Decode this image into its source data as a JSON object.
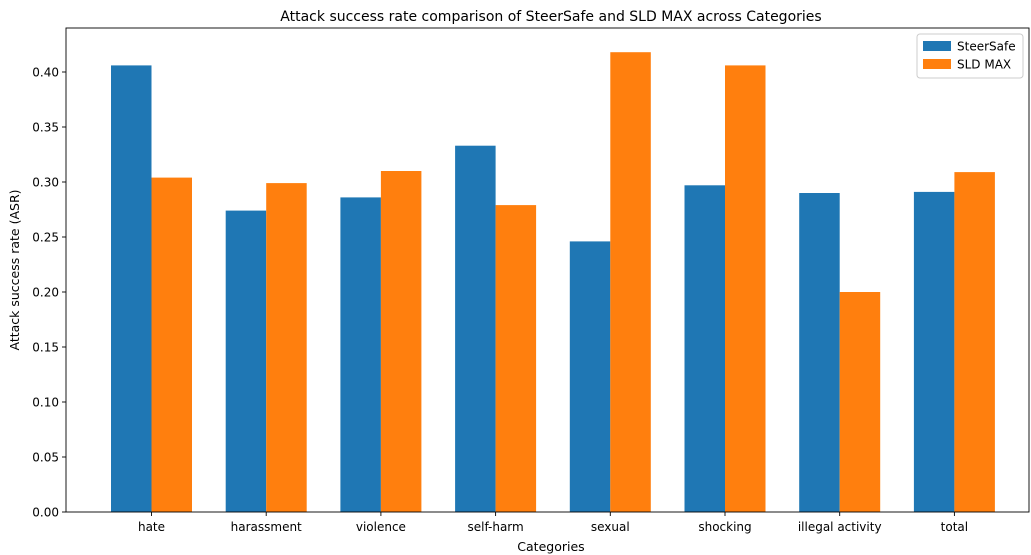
{
  "chart_data": {
    "type": "bar",
    "title": "Attack success rate comparison of SteerSafe and SLD MAX across Categories",
    "xlabel": "Categories",
    "ylabel": "Attack success rate (ASR)",
    "categories": [
      "hate",
      "harassment",
      "violence",
      "self-harm",
      "sexual",
      "shocking",
      "illegal activity",
      "total"
    ],
    "series": [
      {
        "name": "SteerSafe",
        "color": "#1f77b4",
        "values": [
          0.406,
          0.274,
          0.286,
          0.333,
          0.246,
          0.297,
          0.29,
          0.291
        ]
      },
      {
        "name": "SLD MAX",
        "color": "#ff7f0e",
        "values": [
          0.304,
          0.299,
          0.31,
          0.279,
          0.418,
          0.406,
          0.2,
          0.309
        ]
      }
    ],
    "ylim": [
      0,
      0.44
    ],
    "yticks": [
      "0.00",
      "0.05",
      "0.10",
      "0.15",
      "0.20",
      "0.25",
      "0.30",
      "0.35",
      "0.40"
    ],
    "grid": false,
    "legend_position": "top-right"
  }
}
